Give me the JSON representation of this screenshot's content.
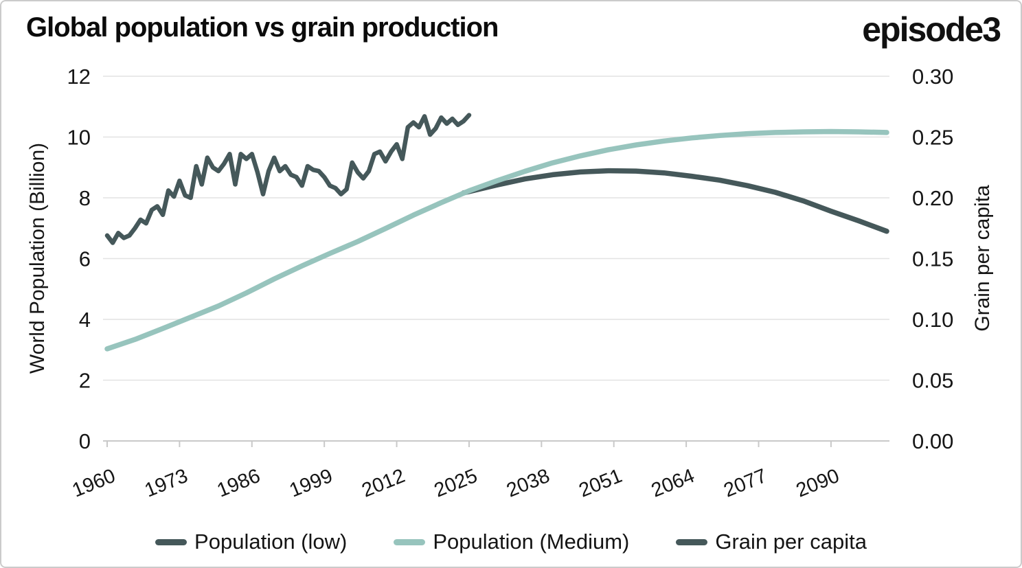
{
  "header": {
    "title": "Global population vs grain production",
    "logo": "episode3"
  },
  "chart_data": {
    "type": "line",
    "title": "Global population vs grain production",
    "grid": "horizontal-only",
    "legend_position": "bottom",
    "x_axis": {
      "tick_labels": [
        1960,
        1973,
        1986,
        1999,
        2012,
        2025,
        2038,
        2051,
        2064,
        2077,
        2090
      ],
      "range": [
        1960,
        2100
      ],
      "tick_label_rotation_deg": -22
    },
    "left_axis": {
      "label": "World Population (Billion)",
      "tick_labels": [
        0,
        2,
        4,
        6,
        8,
        10,
        12
      ],
      "range": [
        0,
        12
      ]
    },
    "right_axis": {
      "label": "Grain per capita",
      "tick_labels": [
        "0.00",
        "0.05",
        "0.10",
        "0.15",
        "0.20",
        "0.25",
        "0.30"
      ],
      "range": [
        0,
        0.3
      ]
    },
    "series": [
      {
        "name": "Population (low)",
        "axis": "left",
        "color": "#45585a",
        "line_width": 7.5,
        "x": [
          2024,
          2030,
          2035,
          2040,
          2045,
          2050,
          2055,
          2060,
          2065,
          2070,
          2075,
          2080,
          2085,
          2090,
          2095,
          2100
        ],
        "values": [
          8.16,
          8.42,
          8.62,
          8.76,
          8.85,
          8.89,
          8.88,
          8.82,
          8.71,
          8.58,
          8.4,
          8.18,
          7.9,
          7.56,
          7.24,
          6.9
        ]
      },
      {
        "name": "Population (Medium)",
        "axis": "left",
        "color": "#97c4bd",
        "line_width": 7.5,
        "x": [
          1960,
          1965,
          1970,
          1975,
          1980,
          1985,
          1990,
          1995,
          2000,
          2005,
          2010,
          2015,
          2020,
          2025,
          2030,
          2035,
          2040,
          2045,
          2050,
          2055,
          2060,
          2065,
          2070,
          2075,
          2080,
          2085,
          2090,
          2095,
          2100
        ],
        "values": [
          3.03,
          3.34,
          3.7,
          4.07,
          4.44,
          4.87,
          5.33,
          5.76,
          6.17,
          6.56,
          6.99,
          7.43,
          7.84,
          8.23,
          8.56,
          8.87,
          9.15,
          9.38,
          9.58,
          9.74,
          9.87,
          9.97,
          10.05,
          10.11,
          10.15,
          10.17,
          10.18,
          10.17,
          10.15
        ]
      },
      {
        "name": "Grain per capita",
        "axis": "right",
        "color": "#45585a",
        "line_width": 6.5,
        "x": [
          1960,
          1961,
          1962,
          1963,
          1964,
          1965,
          1966,
          1967,
          1968,
          1969,
          1970,
          1971,
          1972,
          1973,
          1974,
          1975,
          1976,
          1977,
          1978,
          1979,
          1980,
          1981,
          1982,
          1983,
          1984,
          1985,
          1986,
          1987,
          1988,
          1989,
          1990,
          1991,
          1992,
          1993,
          1994,
          1995,
          1996,
          1997,
          1998,
          1999,
          2000,
          2001,
          2002,
          2003,
          2004,
          2005,
          2006,
          2007,
          2008,
          2009,
          2010,
          2011,
          2012,
          2013,
          2014,
          2015,
          2016,
          2017,
          2018,
          2019,
          2020,
          2021,
          2022,
          2023,
          2024,
          2025
        ],
        "values": [
          0.169,
          0.163,
          0.171,
          0.167,
          0.169,
          0.175,
          0.182,
          0.179,
          0.19,
          0.193,
          0.186,
          0.206,
          0.201,
          0.214,
          0.202,
          0.2,
          0.226,
          0.211,
          0.233,
          0.225,
          0.222,
          0.228,
          0.236,
          0.211,
          0.236,
          0.232,
          0.236,
          0.221,
          0.203,
          0.222,
          0.233,
          0.222,
          0.226,
          0.219,
          0.217,
          0.21,
          0.226,
          0.223,
          0.222,
          0.217,
          0.21,
          0.208,
          0.203,
          0.207,
          0.229,
          0.221,
          0.216,
          0.222,
          0.236,
          0.238,
          0.23,
          0.238,
          0.244,
          0.232,
          0.258,
          0.262,
          0.258,
          0.267,
          0.252,
          0.257,
          0.266,
          0.261,
          0.265,
          0.26,
          0.263,
          0.268
        ]
      }
    ]
  },
  "legend": {
    "items": [
      {
        "label": "Population (low)",
        "color": "#45585a"
      },
      {
        "label": "Population (Medium)",
        "color": "#97c4bd"
      },
      {
        "label": "Grain per capita",
        "color": "#45585a"
      }
    ]
  },
  "colors": {
    "dark_series": "#45585a",
    "teal_series": "#97c4bd",
    "gridline": "#e2e2e2",
    "axis_line": "#c9c9c9",
    "text": "#161616"
  }
}
